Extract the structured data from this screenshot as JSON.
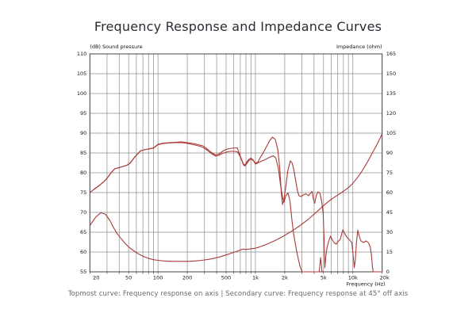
{
  "title": "Frequency Response and Impedance Curves",
  "caption": "Topmost curve: Frequency response on axis | Secondary curve: Frequency response at 45° off axis",
  "colors": {
    "curve": "#a93939",
    "grid": "#8b8b8b",
    "border": "#444444",
    "tick_text": "#111111",
    "title_text": "#2b2b33",
    "caption_text": "#666a6e",
    "background": "#ffffff"
  },
  "chart_data": {
    "type": "line",
    "title": "Frequency Response and Impedance Curves",
    "x_axis": {
      "label": "Frequency (Hz)",
      "scale": "log",
      "min": 20,
      "max": 20000,
      "gridlines": [
        20,
        30,
        40,
        50,
        60,
        70,
        80,
        90,
        100,
        200,
        300,
        400,
        500,
        600,
        700,
        800,
        900,
        1000,
        2000,
        3000,
        4000,
        5000,
        6000,
        7000,
        8000,
        9000,
        10000,
        20000
      ],
      "ticks": [
        [
          20,
          "20"
        ],
        [
          50,
          "50"
        ],
        [
          100,
          "100"
        ],
        [
          200,
          "200"
        ],
        [
          500,
          "500"
        ],
        [
          1000,
          "1k"
        ],
        [
          2000,
          "2k"
        ],
        [
          5000,
          "5k"
        ],
        [
          10000,
          "10k"
        ],
        [
          20000,
          "20k"
        ]
      ]
    },
    "y_left": {
      "label": "(dB)  Sound pressure",
      "min": 55,
      "max": 110,
      "step": 5,
      "ticks": [
        110,
        105,
        100,
        95,
        90,
        85,
        80,
        75,
        70,
        65,
        60,
        55
      ]
    },
    "y_right": {
      "label": "Impedance  (ohm)",
      "min": 0,
      "max": 165,
      "step": 15,
      "ticks": [
        165,
        150,
        135,
        120,
        105,
        90,
        75,
        60,
        45,
        30,
        15,
        0
      ]
    },
    "grid": true,
    "legend_position": "none",
    "series": [
      {
        "name": "Frequency response on axis",
        "axis": "left",
        "unit": "dB",
        "color": "#a93939",
        "points": [
          [
            20,
            75
          ],
          [
            22,
            75.8
          ],
          [
            25,
            76.8
          ],
          [
            28,
            77.8
          ],
          [
            30,
            78.6
          ],
          [
            33,
            80
          ],
          [
            36,
            81
          ],
          [
            40,
            81.3
          ],
          [
            44,
            81.6
          ],
          [
            48,
            81.9
          ],
          [
            52,
            82.5
          ],
          [
            57,
            83.8
          ],
          [
            62,
            84.8
          ],
          [
            66,
            85.5
          ],
          [
            72,
            85.8
          ],
          [
            80,
            86
          ],
          [
            90,
            86.3
          ],
          [
            100,
            87.2
          ],
          [
            115,
            87.5
          ],
          [
            130,
            87.6
          ],
          [
            150,
            87.7
          ],
          [
            175,
            87.8
          ],
          [
            200,
            87.6
          ],
          [
            230,
            87.4
          ],
          [
            260,
            87.1
          ],
          [
            290,
            86.8
          ],
          [
            320,
            86
          ],
          [
            350,
            85.2
          ],
          [
            390,
            84.5
          ],
          [
            420,
            84.7
          ],
          [
            460,
            85.4
          ],
          [
            500,
            85.9
          ],
          [
            540,
            86.1
          ],
          [
            580,
            86.2
          ],
          [
            650,
            86.3
          ],
          [
            700,
            84.2
          ],
          [
            750,
            82.3
          ],
          [
            775,
            81.9
          ],
          [
            810,
            82.6
          ],
          [
            850,
            83.3
          ],
          [
            900,
            83.7
          ],
          [
            950,
            83.2
          ],
          [
            1000,
            82.4
          ],
          [
            1060,
            82.7
          ],
          [
            1120,
            83.8
          ],
          [
            1200,
            85
          ],
          [
            1300,
            86.6
          ],
          [
            1400,
            88.1
          ],
          [
            1500,
            89
          ],
          [
            1600,
            88.4
          ],
          [
            1700,
            85.8
          ],
          [
            1780,
            81
          ],
          [
            1850,
            74.5
          ],
          [
            1900,
            72
          ],
          [
            1960,
            73.2
          ],
          [
            2050,
            76.5
          ],
          [
            2150,
            80.5
          ],
          [
            2280,
            83
          ],
          [
            2380,
            82.5
          ],
          [
            2480,
            80.8
          ],
          [
            2580,
            78.3
          ],
          [
            2700,
            75.5
          ],
          [
            2800,
            74.2
          ],
          [
            2950,
            74
          ],
          [
            3100,
            74.4
          ],
          [
            3300,
            74.7
          ],
          [
            3500,
            74.2
          ],
          [
            3700,
            74.9
          ],
          [
            3820,
            75.3
          ],
          [
            3950,
            73.2
          ],
          [
            4060,
            72.3
          ],
          [
            4220,
            74.3
          ],
          [
            4400,
            75.2
          ],
          [
            4600,
            74.8
          ],
          [
            4800,
            72.6
          ],
          [
            4950,
            70
          ],
          [
            5060,
            64
          ],
          [
            5160,
            56
          ],
          [
            5260,
            58.5
          ],
          [
            5420,
            61
          ],
          [
            5640,
            62.6
          ],
          [
            5900,
            64
          ],
          [
            6150,
            63.1
          ],
          [
            6450,
            62.3
          ],
          [
            6750,
            62
          ],
          [
            7050,
            62.6
          ],
          [
            7450,
            63.3
          ],
          [
            7900,
            65.6
          ],
          [
            8350,
            64.4
          ],
          [
            8800,
            63.6
          ],
          [
            9300,
            63
          ],
          [
            9750,
            62.4
          ],
          [
            10050,
            59.5
          ],
          [
            10350,
            56
          ],
          [
            10600,
            58
          ],
          [
            10900,
            62.5
          ],
          [
            11250,
            65.5
          ],
          [
            11650,
            64
          ],
          [
            12100,
            62.8
          ],
          [
            12900,
            62.4
          ],
          [
            13700,
            62.8
          ],
          [
            14500,
            62.3
          ],
          [
            15100,
            61.3
          ],
          [
            15500,
            59.3
          ],
          [
            15900,
            56.3
          ],
          [
            16200,
            54
          ],
          [
            17500,
            54
          ],
          [
            20000,
            54
          ]
        ]
      },
      {
        "name": "Frequency response at 45° off axis",
        "axis": "left",
        "unit": "dB",
        "color": "#a93939",
        "points": [
          [
            20,
            75
          ],
          [
            22,
            75.8
          ],
          [
            25,
            76.8
          ],
          [
            28,
            77.8
          ],
          [
            30,
            78.6
          ],
          [
            33,
            80
          ],
          [
            36,
            81
          ],
          [
            40,
            81.3
          ],
          [
            44,
            81.6
          ],
          [
            48,
            81.9
          ],
          [
            52,
            82.5
          ],
          [
            57,
            83.8
          ],
          [
            62,
            84.8
          ],
          [
            66,
            85.5
          ],
          [
            72,
            85.8
          ],
          [
            80,
            86
          ],
          [
            90,
            86.2
          ],
          [
            100,
            87.1
          ],
          [
            115,
            87.4
          ],
          [
            130,
            87.5
          ],
          [
            150,
            87.6
          ],
          [
            175,
            87.6
          ],
          [
            200,
            87.4
          ],
          [
            230,
            87.1
          ],
          [
            260,
            86.8
          ],
          [
            290,
            86.4
          ],
          [
            320,
            85.7
          ],
          [
            350,
            84.9
          ],
          [
            390,
            84.2
          ],
          [
            420,
            84.4
          ],
          [
            460,
            84.9
          ],
          [
            500,
            85.2
          ],
          [
            550,
            85.4
          ],
          [
            620,
            85.4
          ],
          [
            660,
            85.2
          ],
          [
            710,
            83.7
          ],
          [
            755,
            82
          ],
          [
            780,
            81.7
          ],
          [
            815,
            82.3
          ],
          [
            855,
            83
          ],
          [
            905,
            83.5
          ],
          [
            955,
            83
          ],
          [
            1005,
            82.2
          ],
          [
            1100,
            82.7
          ],
          [
            1200,
            83.1
          ],
          [
            1300,
            83.5
          ],
          [
            1420,
            84
          ],
          [
            1530,
            84.3
          ],
          [
            1620,
            83.7
          ],
          [
            1720,
            81.2
          ],
          [
            1810,
            77
          ],
          [
            1900,
            73.8
          ],
          [
            1970,
            72.6
          ],
          [
            2060,
            74.3
          ],
          [
            2160,
            74.9
          ],
          [
            2260,
            73
          ],
          [
            2360,
            68.5
          ],
          [
            2460,
            64.8
          ],
          [
            2560,
            62.3
          ],
          [
            2700,
            59.2
          ],
          [
            2860,
            56.5
          ],
          [
            3020,
            54.8
          ],
          [
            3200,
            53.5
          ],
          [
            3600,
            53.5
          ],
          [
            4000,
            53.5
          ],
          [
            4350,
            53.8
          ],
          [
            4520,
            55
          ],
          [
            4670,
            58.6
          ],
          [
            4820,
            55.2
          ],
          [
            4980,
            53.5
          ],
          [
            5150,
            53
          ]
        ]
      },
      {
        "name": "Impedance",
        "axis": "right",
        "unit": "ohm",
        "color": "#a93939",
        "points": [
          [
            20,
            35
          ],
          [
            23,
            41.5
          ],
          [
            26,
            44.8
          ],
          [
            29,
            43.5
          ],
          [
            32,
            39
          ],
          [
            35,
            33.5
          ],
          [
            38,
            29
          ],
          [
            42,
            25
          ],
          [
            46,
            21.5
          ],
          [
            50,
            18.8
          ],
          [
            55,
            16.5
          ],
          [
            60,
            14.5
          ],
          [
            66,
            12.8
          ],
          [
            72,
            11.4
          ],
          [
            80,
            10.2
          ],
          [
            90,
            9.2
          ],
          [
            100,
            8.7
          ],
          [
            115,
            8.2
          ],
          [
            135,
            8
          ],
          [
            160,
            7.9
          ],
          [
            200,
            7.9
          ],
          [
            240,
            8.2
          ],
          [
            280,
            8.7
          ],
          [
            330,
            9.4
          ],
          [
            380,
            10.3
          ],
          [
            430,
            11.3
          ],
          [
            480,
            12.4
          ],
          [
            530,
            13.4
          ],
          [
            580,
            14.4
          ],
          [
            640,
            15.4
          ],
          [
            700,
            16.5
          ],
          [
            745,
            17.2
          ],
          [
            790,
            17
          ],
          [
            860,
            17.2
          ],
          [
            940,
            17.6
          ],
          [
            1000,
            17.9
          ],
          [
            1100,
            18.8
          ],
          [
            1250,
            20.3
          ],
          [
            1400,
            21.8
          ],
          [
            1600,
            23.8
          ],
          [
            1800,
            25.7
          ],
          [
            2000,
            27.6
          ],
          [
            2250,
            29.9
          ],
          [
            2500,
            32
          ],
          [
            2800,
            34.5
          ],
          [
            3100,
            36.9
          ],
          [
            3400,
            39.1
          ],
          [
            3700,
            41.4
          ],
          [
            4000,
            43.6
          ],
          [
            4400,
            46.3
          ],
          [
            4800,
            48.9
          ],
          [
            5200,
            51.2
          ],
          [
            5700,
            53.6
          ],
          [
            6200,
            55.6
          ],
          [
            6700,
            57.2
          ],
          [
            7200,
            58.7
          ],
          [
            7700,
            60.1
          ],
          [
            8200,
            61.6
          ],
          [
            8800,
            63.2
          ],
          [
            9400,
            65
          ],
          [
            10000,
            67
          ],
          [
            10800,
            70
          ],
          [
            11600,
            73
          ],
          [
            12400,
            76.2
          ],
          [
            13300,
            79.8
          ],
          [
            14200,
            83.4
          ],
          [
            15100,
            87
          ],
          [
            16000,
            90.5
          ],
          [
            17000,
            94
          ],
          [
            18000,
            97.5
          ],
          [
            19000,
            101
          ],
          [
            20000,
            104.5
          ]
        ]
      }
    ]
  }
}
